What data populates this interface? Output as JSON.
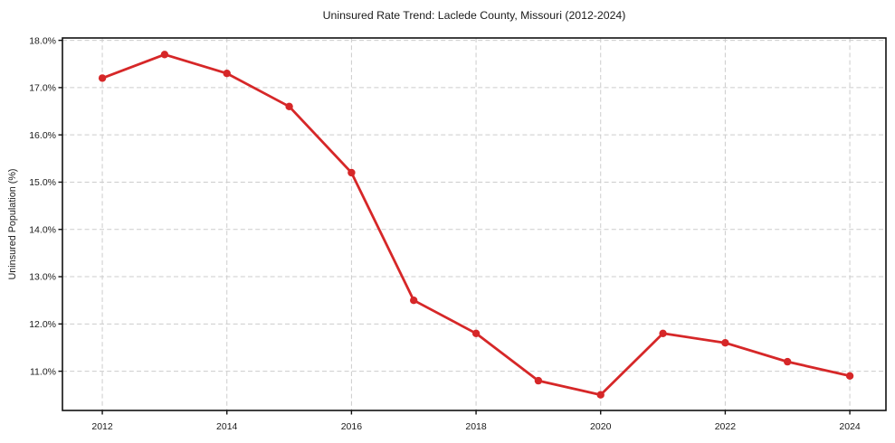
{
  "figure": {
    "background": "#ffffff"
  },
  "chart_data": {
    "type": "line",
    "title": "Uninsured Rate Trend: Laclede County, Missouri (2012-2024)",
    "xlabel": "",
    "ylabel": "Uninsured Population (%)",
    "series": [
      {
        "name": "uninsured-rate",
        "color": "#d62728",
        "marker": "circle",
        "x": [
          2012,
          2013,
          2014,
          2015,
          2016,
          2017,
          2018,
          2019,
          2020,
          2021,
          2022,
          2023,
          2024
        ],
        "values": [
          17.2,
          17.7,
          17.3,
          16.6,
          15.2,
          12.5,
          11.8,
          10.8,
          10.5,
          11.8,
          11.6,
          11.2,
          10.9
        ]
      }
    ],
    "xlim": [
      2011.36,
      2024.58
    ],
    "ylim": [
      10.17,
      18.05
    ],
    "x_ticks": [
      2012,
      2014,
      2016,
      2018,
      2020,
      2022,
      2024
    ],
    "x_tick_labels": [
      "2012",
      "2014",
      "2016",
      "2018",
      "2020",
      "2022",
      "2024"
    ],
    "y_ticks": [
      11,
      12,
      13,
      14,
      15,
      16,
      17,
      18
    ],
    "y_tick_labels": [
      "11.0%",
      "12.0%",
      "13.0%",
      "14.0%",
      "15.0%",
      "16.0%",
      "17.0%",
      "18.0%"
    ],
    "grid": true,
    "grid_color": "#cccccc",
    "grid_style": "dashed",
    "legend": "none",
    "axis_color": "#111111",
    "text_color": "#1a1a1a",
    "line_width": 2.8,
    "marker_radius": 4.2
  }
}
